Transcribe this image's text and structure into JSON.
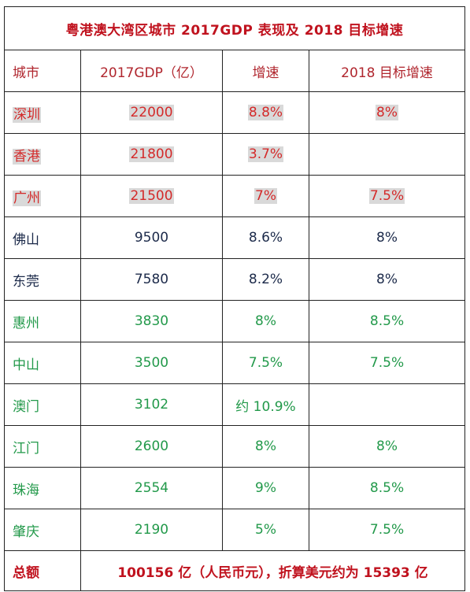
{
  "title": "粤港澳大湾区城市 2017GDP 表现及 2018 目标增速",
  "headers": [
    "城市",
    "2017GDP（亿）",
    "增速",
    "2018 目标增速"
  ],
  "colors": {
    "title": "#c0121e",
    "header": "#b0262e",
    "red_group": "#d42a2a",
    "navy_group": "#1c2a4a",
    "green_group": "#22994a",
    "highlight": "#d9d9d9",
    "border": "#222222"
  },
  "rows": [
    {
      "city": "深圳",
      "gdp": "22000",
      "growth": "8.8%",
      "target": "8%"
    },
    {
      "city": "香港",
      "gdp": "21800",
      "growth": "3.7%",
      "target": ""
    },
    {
      "city": "广州",
      "gdp": "21500",
      "growth": "7%",
      "target": "7.5%"
    },
    {
      "city": "佛山",
      "gdp": "9500",
      "growth": "8.6%",
      "target": "8%"
    },
    {
      "city": "东莞",
      "gdp": "7580",
      "growth": "8.2%",
      "target": "8%"
    },
    {
      "city": "惠州",
      "gdp": "3830",
      "growth": "8%",
      "target": "8.5%"
    },
    {
      "city": "中山",
      "gdp": "3500",
      "growth": "7.5%",
      "target": "7.5%"
    },
    {
      "city": "澳门",
      "gdp": "3102",
      "growth": "约 10.9%",
      "target": ""
    },
    {
      "city": "江门",
      "gdp": "2600",
      "growth": "8%",
      "target": "8%"
    },
    {
      "city": "珠海",
      "gdp": "2554",
      "growth": "9%",
      "target": "8.5%"
    },
    {
      "city": "肇庆",
      "gdp": "2190",
      "growth": "5%",
      "target": "7.5%"
    }
  ],
  "total": {
    "label": "总额",
    "value": "100156 亿（人民币元），折算美元约为 15393 亿"
  }
}
